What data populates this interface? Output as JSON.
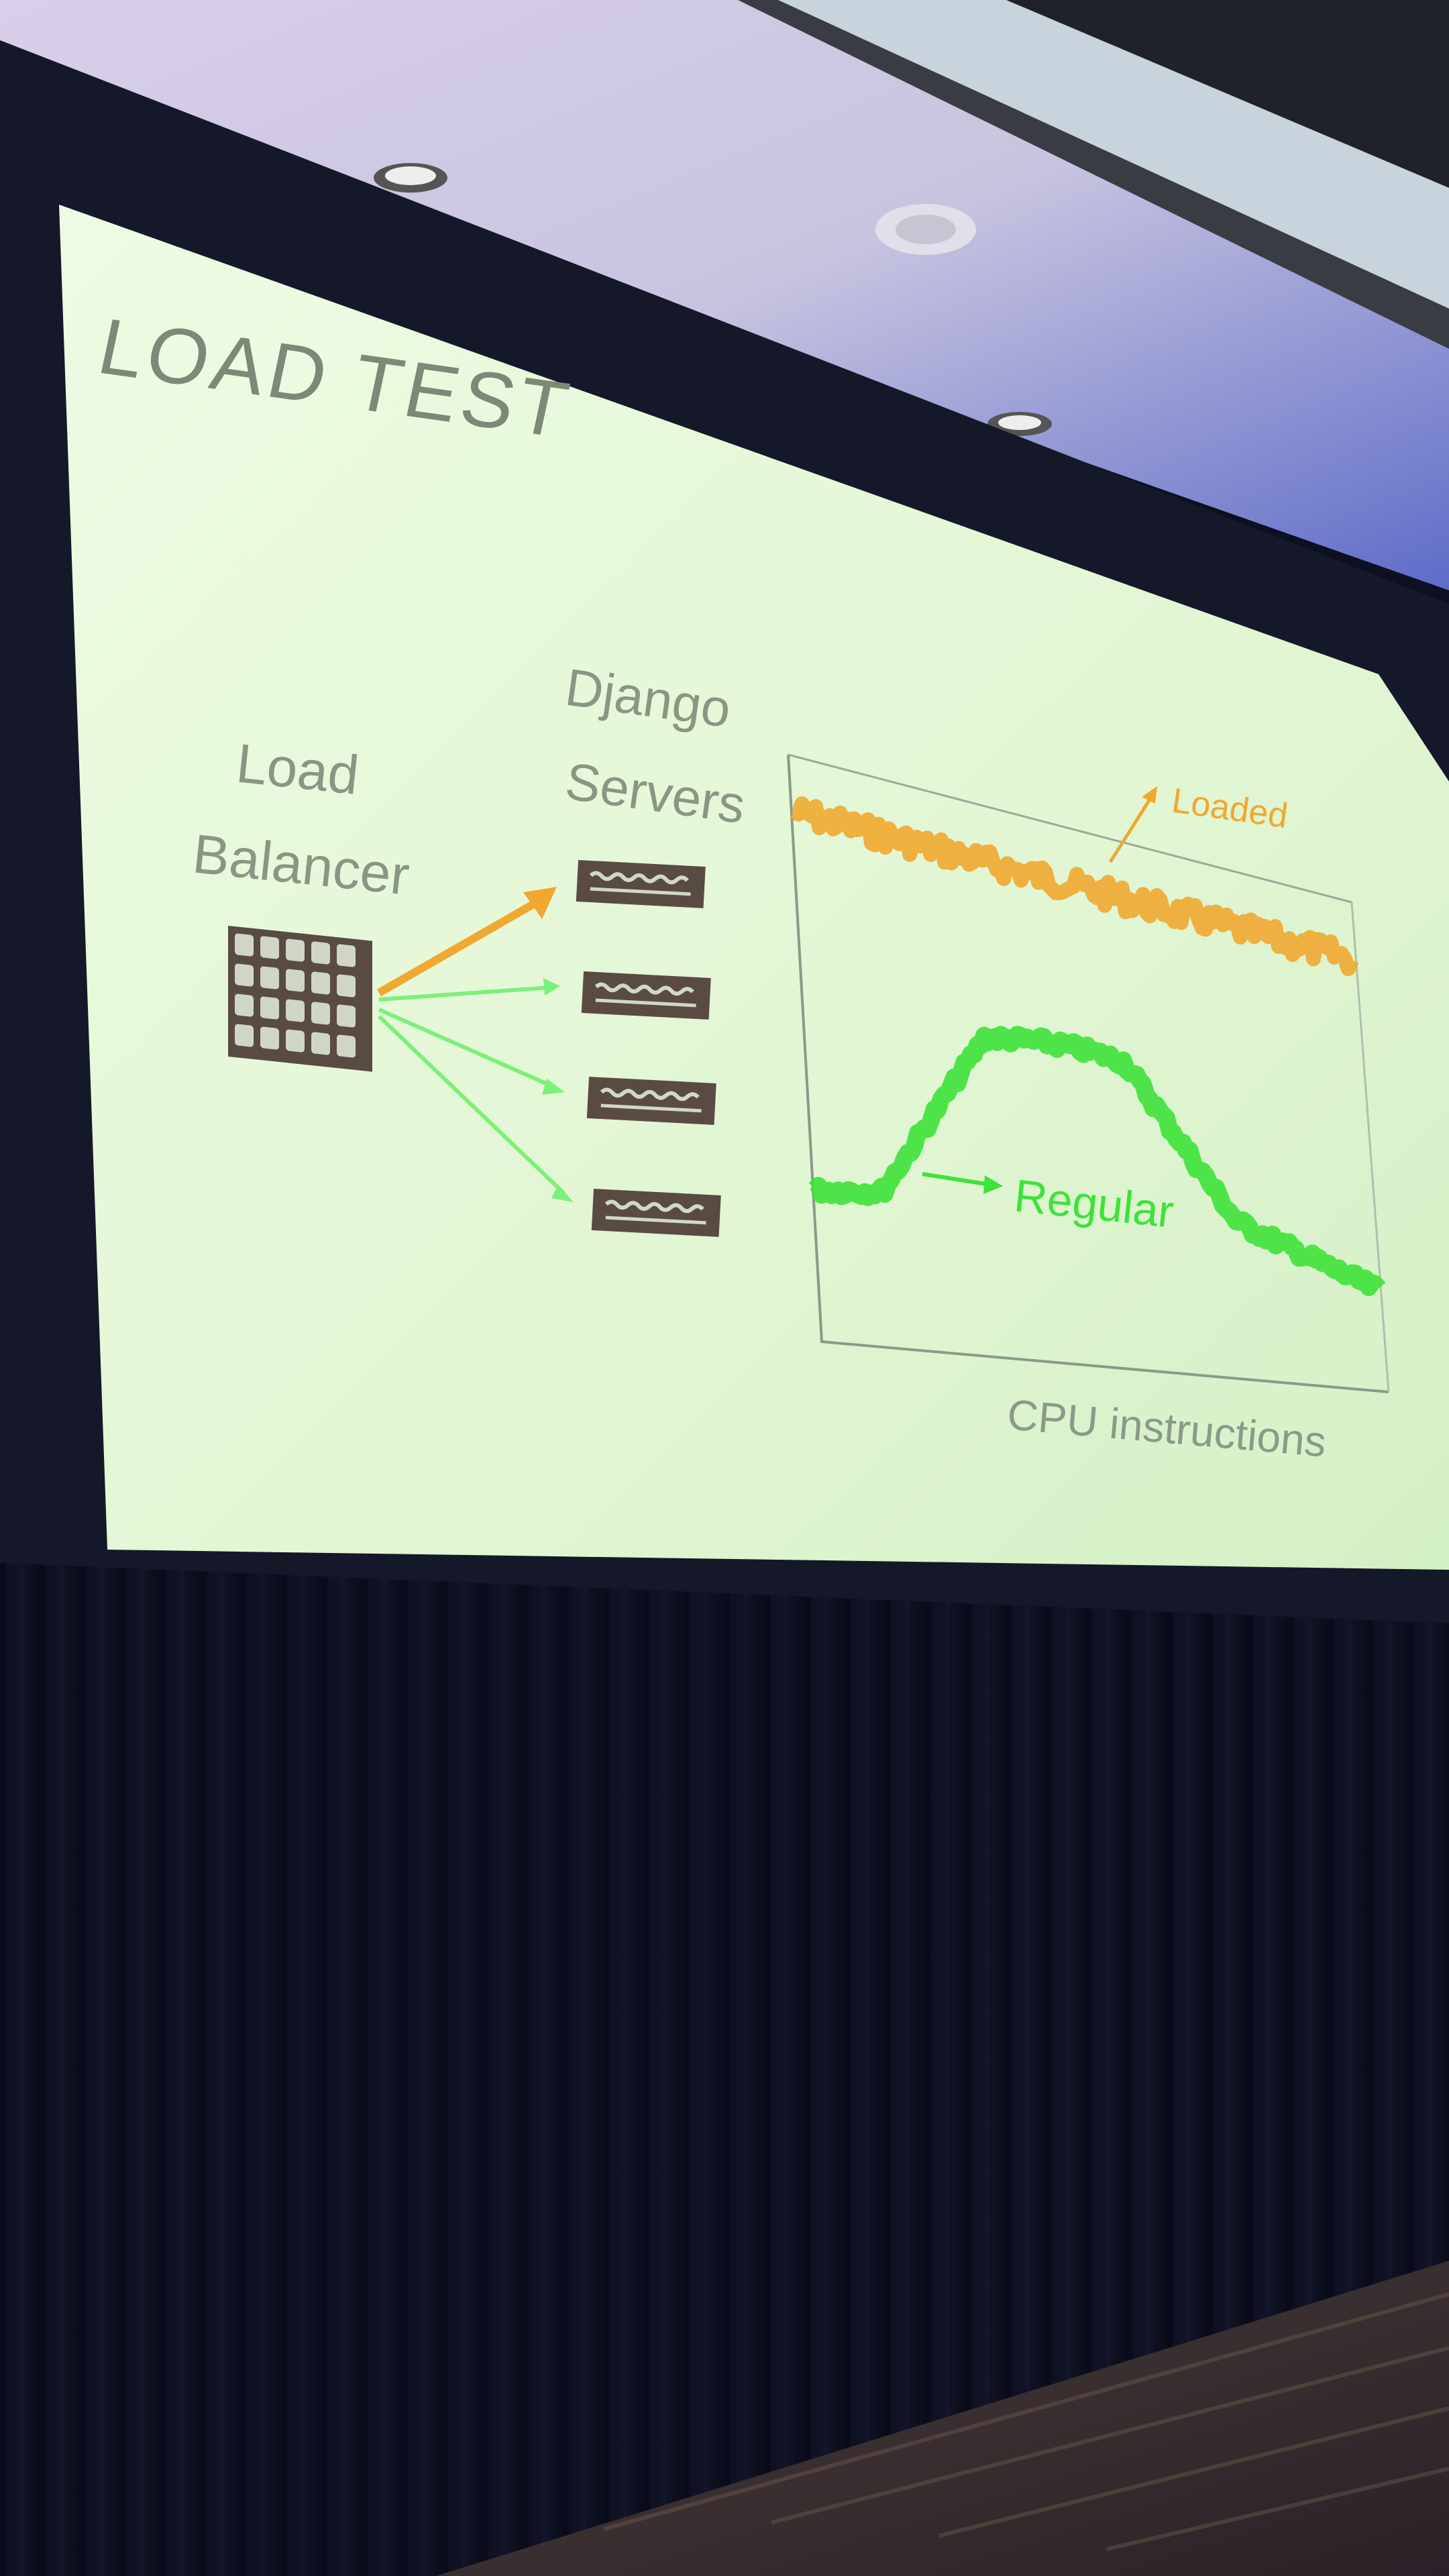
{
  "slide": {
    "title": "LOAD TEST",
    "load_balancer_label": [
      "Load",
      "Balancer"
    ],
    "servers_label": [
      "Django",
      "Servers"
    ],
    "series_loaded": "Loaded",
    "series_regular": "Regular",
    "x_axis_label": "CPU instructions"
  },
  "colors": {
    "screen": "#e6f7d6",
    "loaded": "#f0a830",
    "regular": "#3ee23a",
    "hardware": "#5a4a44",
    "drape": "#0b0e1a"
  },
  "icons": {
    "load_balancer": "server-rack-icon",
    "server": "server-unit-icon"
  }
}
